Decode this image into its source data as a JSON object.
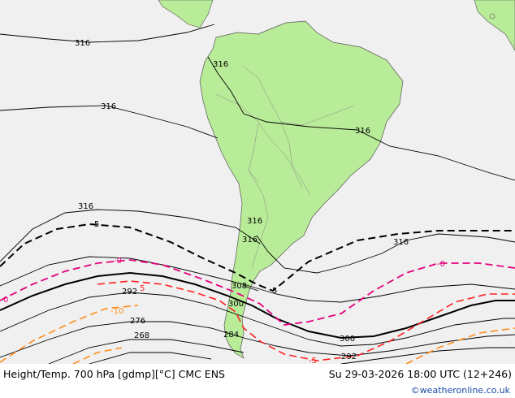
{
  "footer": {
    "title": "Height/Temp. 700 hPa [gdmp][°C] CMC ENS",
    "valid_time": "Su 29-03-2026 18:00 UTC (12+246)",
    "credit": "©weatheronline.co.uk"
  },
  "colors": {
    "ocean": "#f0f0f0",
    "land": "#b8ec98",
    "height_contour": "#000000",
    "temp_zero": "#e4007c",
    "temp_neg5": "#ff2020",
    "temp_neg10": "#ff8c1a"
  },
  "height_labels": [
    "316",
    "316",
    "316",
    "316",
    "316",
    "316",
    "316",
    "316",
    "308",
    "300",
    "300",
    "292",
    "292",
    "284",
    "276",
    "268"
  ],
  "temp_labels": [
    "5",
    "5",
    "-0",
    "-0",
    "0",
    "5",
    "-10",
    "-5"
  ]
}
